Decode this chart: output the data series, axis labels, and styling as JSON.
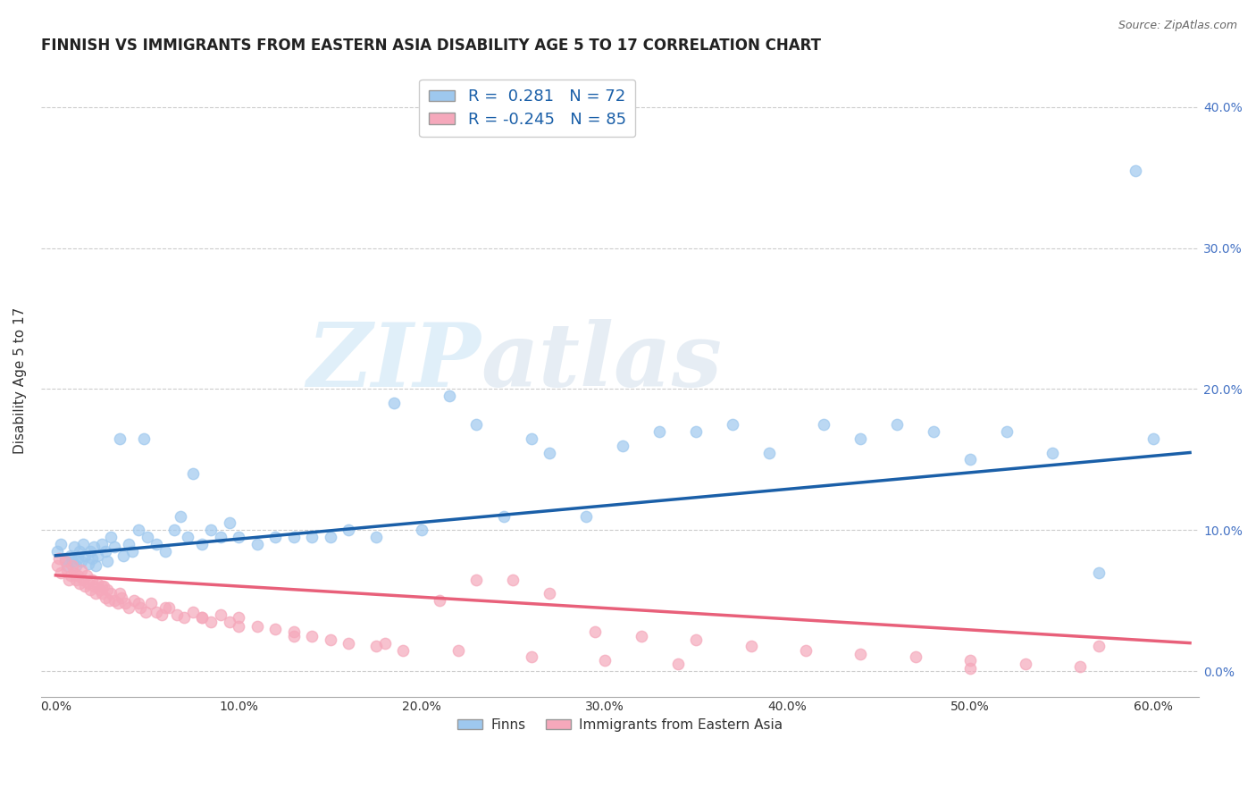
{
  "title": "FINNISH VS IMMIGRANTS FROM EASTERN ASIA DISABILITY AGE 5 TO 17 CORRELATION CHART",
  "source": "Source: ZipAtlas.com",
  "ylabel": "Disability Age 5 to 17",
  "xlim": [
    -0.008,
    0.625
  ],
  "ylim": [
    -0.018,
    0.43
  ],
  "xtick_vals": [
    0.0,
    0.1,
    0.2,
    0.3,
    0.4,
    0.5,
    0.6
  ],
  "xtick_labels": [
    "0.0%",
    "10.0%",
    "20.0%",
    "30.0%",
    "40.0%",
    "50.0%",
    "60.0%"
  ],
  "ytick_vals": [
    0.0,
    0.1,
    0.2,
    0.3,
    0.4
  ],
  "ytick_labels": [
    "0.0%",
    "10.0%",
    "20.0%",
    "30.0%",
    "40.0%"
  ],
  "finn_color": "#9EC8EE",
  "imm_color": "#F5A8BB",
  "finn_line_color": "#1A5FA8",
  "imm_line_color": "#E8607A",
  "finn_R": 0.281,
  "finn_N": 72,
  "imm_R": -0.245,
  "imm_N": 85,
  "legend_label_1": "Finns",
  "legend_label_2": "Immigrants from Eastern Asia",
  "watermark_zip": "ZIP",
  "watermark_atlas": "atlas",
  "finn_line_x0": 0.0,
  "finn_line_y0": 0.082,
  "finn_line_x1": 0.62,
  "finn_line_y1": 0.155,
  "imm_line_x0": 0.0,
  "imm_line_y0": 0.068,
  "imm_line_x1": 0.62,
  "imm_line_y1": 0.02,
  "finn_scatter_x": [
    0.001,
    0.003,
    0.005,
    0.006,
    0.008,
    0.009,
    0.01,
    0.011,
    0.012,
    0.013,
    0.014,
    0.015,
    0.016,
    0.018,
    0.019,
    0.02,
    0.021,
    0.022,
    0.023,
    0.025,
    0.027,
    0.028,
    0.03,
    0.032,
    0.035,
    0.037,
    0.04,
    0.042,
    0.045,
    0.048,
    0.05,
    0.055,
    0.06,
    0.065,
    0.068,
    0.072,
    0.075,
    0.08,
    0.085,
    0.09,
    0.095,
    0.1,
    0.11,
    0.12,
    0.13,
    0.14,
    0.15,
    0.16,
    0.175,
    0.185,
    0.2,
    0.215,
    0.23,
    0.245,
    0.26,
    0.27,
    0.29,
    0.31,
    0.33,
    0.35,
    0.37,
    0.39,
    0.42,
    0.44,
    0.46,
    0.48,
    0.5,
    0.52,
    0.545,
    0.57,
    0.59,
    0.6
  ],
  "finn_scatter_y": [
    0.085,
    0.09,
    0.08,
    0.075,
    0.082,
    0.078,
    0.088,
    0.075,
    0.08,
    0.085,
    0.078,
    0.09,
    0.082,
    0.076,
    0.085,
    0.08,
    0.088,
    0.075,
    0.082,
    0.09,
    0.085,
    0.078,
    0.095,
    0.088,
    0.165,
    0.082,
    0.09,
    0.085,
    0.1,
    0.165,
    0.095,
    0.09,
    0.085,
    0.1,
    0.11,
    0.095,
    0.14,
    0.09,
    0.1,
    0.095,
    0.105,
    0.095,
    0.09,
    0.095,
    0.095,
    0.095,
    0.095,
    0.1,
    0.095,
    0.19,
    0.1,
    0.195,
    0.175,
    0.11,
    0.165,
    0.155,
    0.11,
    0.16,
    0.17,
    0.17,
    0.175,
    0.155,
    0.175,
    0.165,
    0.175,
    0.17,
    0.15,
    0.17,
    0.155,
    0.07,
    0.355,
    0.165
  ],
  "imm_scatter_x": [
    0.001,
    0.002,
    0.003,
    0.005,
    0.006,
    0.007,
    0.008,
    0.009,
    0.01,
    0.011,
    0.012,
    0.013,
    0.014,
    0.015,
    0.016,
    0.017,
    0.018,
    0.019,
    0.02,
    0.021,
    0.022,
    0.023,
    0.024,
    0.025,
    0.026,
    0.027,
    0.028,
    0.029,
    0.03,
    0.032,
    0.034,
    0.036,
    0.038,
    0.04,
    0.043,
    0.046,
    0.049,
    0.052,
    0.055,
    0.058,
    0.062,
    0.066,
    0.07,
    0.075,
    0.08,
    0.085,
    0.09,
    0.095,
    0.1,
    0.11,
    0.12,
    0.13,
    0.14,
    0.15,
    0.16,
    0.175,
    0.19,
    0.21,
    0.23,
    0.25,
    0.27,
    0.295,
    0.32,
    0.35,
    0.38,
    0.41,
    0.44,
    0.47,
    0.5,
    0.53,
    0.56,
    0.025,
    0.035,
    0.045,
    0.06,
    0.08,
    0.1,
    0.13,
    0.18,
    0.22,
    0.26,
    0.3,
    0.34,
    0.5,
    0.57
  ],
  "imm_scatter_y": [
    0.075,
    0.08,
    0.07,
    0.078,
    0.072,
    0.065,
    0.068,
    0.075,
    0.07,
    0.065,
    0.068,
    0.062,
    0.072,
    0.065,
    0.06,
    0.068,
    0.062,
    0.058,
    0.065,
    0.06,
    0.055,
    0.062,
    0.058,
    0.055,
    0.06,
    0.052,
    0.058,
    0.05,
    0.055,
    0.05,
    0.048,
    0.052,
    0.048,
    0.045,
    0.05,
    0.045,
    0.042,
    0.048,
    0.042,
    0.04,
    0.045,
    0.04,
    0.038,
    0.042,
    0.038,
    0.035,
    0.04,
    0.035,
    0.038,
    0.032,
    0.03,
    0.028,
    0.025,
    0.022,
    0.02,
    0.018,
    0.015,
    0.05,
    0.065,
    0.065,
    0.055,
    0.028,
    0.025,
    0.022,
    0.018,
    0.015,
    0.012,
    0.01,
    0.008,
    0.005,
    0.003,
    0.06,
    0.055,
    0.048,
    0.045,
    0.038,
    0.032,
    0.025,
    0.02,
    0.015,
    0.01,
    0.008,
    0.005,
    0.002,
    0.018
  ]
}
